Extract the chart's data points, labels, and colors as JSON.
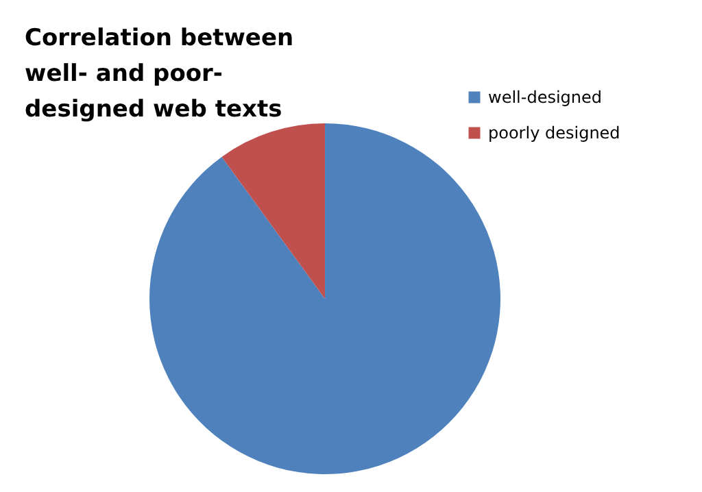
{
  "chart_data": {
    "type": "pie",
    "title": "Correlation between well- and poor-designed web texts",
    "categories": [
      "well-designed",
      "poorly designed"
    ],
    "values": [
      90,
      10
    ],
    "colors": [
      "#4f81bd",
      "#c0504d"
    ],
    "legend": "right"
  }
}
